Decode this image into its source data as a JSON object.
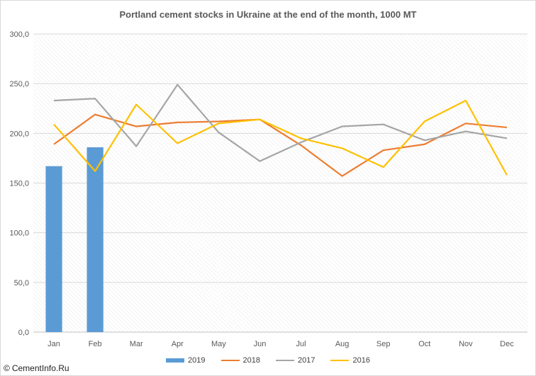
{
  "chart_data": {
    "type": "bar+line",
    "title": "Portland cement stocks in Ukraine at the end of the month, 1000 MT",
    "categories": [
      "Jan",
      "Feb",
      "Mar",
      "Apr",
      "May",
      "Jun",
      "Jul",
      "Aug",
      "Sep",
      "Oct",
      "Nov",
      "Dec"
    ],
    "ylim": [
      0,
      300
    ],
    "yticks": [
      "0,0",
      "50,0",
      "100,0",
      "150,0",
      "200,0",
      "250,0",
      "300,0"
    ],
    "grid": true,
    "legend_position": "bottom",
    "series": [
      {
        "name": "2019",
        "kind": "bar",
        "color": "#5b9bd5",
        "values": [
          167,
          186,
          null,
          null,
          null,
          null,
          null,
          null,
          null,
          null,
          null,
          null
        ]
      },
      {
        "name": "2018",
        "kind": "line",
        "color": "#ed7d31",
        "values": [
          189,
          219,
          207,
          211,
          212,
          214,
          188,
          157,
          183,
          189,
          210,
          206
        ]
      },
      {
        "name": "2017",
        "kind": "line",
        "color": "#a5a5a5",
        "values": [
          233,
          235,
          187,
          249,
          201,
          172,
          191,
          207,
          209,
          193,
          202,
          195
        ]
      },
      {
        "name": "2016",
        "kind": "line",
        "color": "#ffc000",
        "values": [
          209,
          162,
          229,
          190,
          210,
          214,
          195,
          185,
          166,
          212,
          233,
          158
        ]
      }
    ]
  },
  "watermark": {
    "symbol": "©",
    "text": "CementInfo.Ru"
  }
}
